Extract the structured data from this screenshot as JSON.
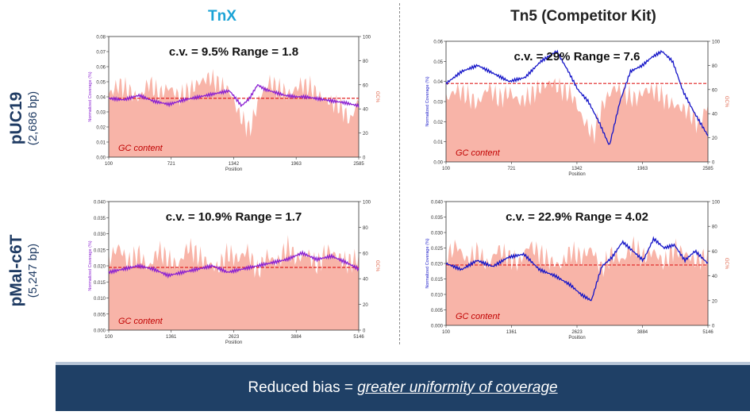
{
  "headers": {
    "left": "TnX",
    "right": "Tn5 (Competitor Kit)"
  },
  "row_labels": [
    {
      "main": "pUC19",
      "sub": "(2,686 bp)"
    },
    {
      "main": "pMal-c6T",
      "sub": "(5,247 bp)"
    }
  ],
  "banner": {
    "prefix": "Reduced bias = ",
    "emphasis": "greater uniformity of coverage"
  },
  "colors": {
    "gc_fill": "#f8b4a8",
    "tnx_line": "#8a1fd2",
    "tn5_line": "#1414c8",
    "ref_line": "#e02020",
    "gc_label": "#c00000"
  },
  "chart_data": [
    {
      "type": "area+line",
      "title": "c.v. = 9.5%  Range = 1.8",
      "xlabel": "Position",
      "ylabel": "Normalized Coverage (%)",
      "y2label": "GC%",
      "xticks": [
        100,
        721,
        1342,
        1963,
        2585
      ],
      "xlim": [
        100,
        2585
      ],
      "ylim": [
        0,
        0.08
      ],
      "yticks": [
        0,
        0.01,
        0.02,
        0.03,
        0.04,
        0.05,
        0.06,
        0.07,
        0.08
      ],
      "y2lim": [
        0,
        100
      ],
      "y2ticks": [
        0,
        20,
        40,
        60,
        80,
        100
      ],
      "annotation": "GC content",
      "reference_line": 0.039,
      "line_color": "#8a1fd2",
      "series": [
        {
          "name": "coverage",
          "x": [
            100,
            250,
            400,
            550,
            700,
            850,
            1000,
            1150,
            1300,
            1350,
            1420,
            1500,
            1580,
            1650,
            1750,
            1850,
            1963,
            2050,
            2150,
            2250,
            2350,
            2450,
            2585
          ],
          "y": [
            0.039,
            0.038,
            0.041,
            0.037,
            0.035,
            0.038,
            0.04,
            0.042,
            0.044,
            0.04,
            0.034,
            0.039,
            0.048,
            0.045,
            0.043,
            0.041,
            0.04,
            0.04,
            0.039,
            0.038,
            0.037,
            0.036,
            0.034
          ]
        },
        {
          "name": "gc",
          "x": [
            100,
            200,
            300,
            400,
            500,
            600,
            700,
            800,
            900,
            1000,
            1100,
            1200,
            1300,
            1400,
            1500,
            1600,
            1700,
            1800,
            1900,
            2000,
            2100,
            2200,
            2300,
            2400,
            2500,
            2585
          ],
          "y": [
            52,
            60,
            55,
            48,
            62,
            52,
            58,
            50,
            55,
            62,
            66,
            60,
            55,
            35,
            22,
            50,
            62,
            56,
            52,
            60,
            58,
            50,
            46,
            42,
            30,
            48
          ]
        }
      ]
    },
    {
      "type": "area+line",
      "title": "c.v. = 29%  Range = 7.6",
      "xlabel": "Position",
      "ylabel": "Normalized Coverage (%)",
      "y2label": "GC%",
      "xticks": [
        100,
        721,
        1342,
        1963,
        2585
      ],
      "xlim": [
        100,
        2585
      ],
      "ylim": [
        0,
        0.06
      ],
      "yticks": [
        0,
        0.01,
        0.02,
        0.03,
        0.04,
        0.05,
        0.06
      ],
      "y2lim": [
        0,
        100
      ],
      "y2ticks": [
        0,
        20,
        40,
        60,
        80,
        100
      ],
      "annotation": "GC content",
      "reference_line": 0.039,
      "line_color": "#1414c8",
      "series": [
        {
          "name": "coverage",
          "x": [
            100,
            250,
            400,
            550,
            700,
            850,
            1000,
            1150,
            1250,
            1350,
            1450,
            1550,
            1650,
            1750,
            1850,
            1963,
            2050,
            2150,
            2250,
            2350,
            2450,
            2585
          ],
          "y": [
            0.039,
            0.045,
            0.048,
            0.044,
            0.04,
            0.042,
            0.05,
            0.055,
            0.046,
            0.036,
            0.03,
            0.02,
            0.008,
            0.03,
            0.045,
            0.048,
            0.052,
            0.055,
            0.05,
            0.035,
            0.025,
            0.013
          ]
        },
        {
          "name": "gc",
          "x": [
            100,
            200,
            300,
            400,
            500,
            600,
            700,
            800,
            900,
            1000,
            1100,
            1200,
            1300,
            1400,
            1500,
            1600,
            1700,
            1800,
            1900,
            2000,
            2100,
            2200,
            2300,
            2400,
            2500,
            2585
          ],
          "y": [
            52,
            60,
            55,
            48,
            62,
            52,
            58,
            50,
            55,
            62,
            66,
            60,
            55,
            35,
            22,
            50,
            62,
            56,
            52,
            60,
            58,
            50,
            46,
            42,
            30,
            48
          ]
        }
      ]
    },
    {
      "type": "area+line",
      "title": "c.v. = 10.9%  Range = 1.7",
      "xlabel": "Position",
      "ylabel": "Normalized Coverage (%)",
      "y2label": "GC%",
      "xticks": [
        100,
        1361,
        2623,
        3884,
        5146
      ],
      "xlim": [
        100,
        5146
      ],
      "ylim": [
        0,
        0.04
      ],
      "yticks": [
        0,
        0.005,
        0.01,
        0.015,
        0.02,
        0.025,
        0.03,
        0.035,
        0.04
      ],
      "y2lim": [
        0,
        100
      ],
      "y2ticks": [
        0,
        20,
        40,
        60,
        80,
        100
      ],
      "annotation": "GC content",
      "reference_line": 0.0195,
      "line_color": "#8a1fd2",
      "series": [
        {
          "name": "coverage",
          "x": [
            100,
            400,
            700,
            1000,
            1300,
            1600,
            1900,
            2200,
            2500,
            2800,
            3100,
            3400,
            3700,
            4000,
            4300,
            4600,
            4900,
            5146
          ],
          "y": [
            0.018,
            0.019,
            0.02,
            0.019,
            0.017,
            0.018,
            0.019,
            0.02,
            0.018,
            0.019,
            0.02,
            0.021,
            0.022,
            0.024,
            0.022,
            0.023,
            0.021,
            0.019
          ]
        },
        {
          "name": "gc",
          "x": [
            100,
            300,
            500,
            700,
            900,
            1100,
            1300,
            1500,
            1700,
            1900,
            2100,
            2300,
            2500,
            2700,
            2900,
            3100,
            3300,
            3500,
            3700,
            3900,
            4100,
            4300,
            4500,
            4700,
            4900,
            5146
          ],
          "y": [
            55,
            65,
            52,
            60,
            48,
            62,
            55,
            50,
            65,
            58,
            52,
            48,
            60,
            55,
            62,
            45,
            58,
            52,
            65,
            55,
            60,
            50,
            62,
            58,
            52,
            56
          ]
        }
      ]
    },
    {
      "type": "area+line",
      "title": "c.v. = 22.9%  Range = 4.02",
      "xlabel": "Position",
      "ylabel": "Normalized Coverage (%)",
      "y2label": "GC%",
      "xticks": [
        100,
        1361,
        2623,
        3884,
        5146
      ],
      "xlim": [
        100,
        5146
      ],
      "ylim": [
        0,
        0.04
      ],
      "yticks": [
        0,
        0.005,
        0.01,
        0.015,
        0.02,
        0.025,
        0.03,
        0.035,
        0.04
      ],
      "y2lim": [
        0,
        100
      ],
      "y2ticks": [
        0,
        20,
        40,
        60,
        80,
        100
      ],
      "annotation": "GC content",
      "reference_line": 0.0195,
      "line_color": "#1414c8",
      "series": [
        {
          "name": "coverage",
          "x": [
            100,
            400,
            700,
            1000,
            1300,
            1600,
            1900,
            2200,
            2500,
            2700,
            2900,
            3100,
            3300,
            3500,
            3700,
            3900,
            4100,
            4300,
            4500,
            4700,
            4900,
            5146
          ],
          "y": [
            0.02,
            0.018,
            0.021,
            0.019,
            0.022,
            0.023,
            0.018,
            0.016,
            0.013,
            0.01,
            0.008,
            0.019,
            0.022,
            0.027,
            0.024,
            0.021,
            0.028,
            0.025,
            0.026,
            0.021,
            0.024,
            0.02
          ]
        },
        {
          "name": "gc",
          "x": [
            100,
            300,
            500,
            700,
            900,
            1100,
            1300,
            1500,
            1700,
            1900,
            2100,
            2300,
            2500,
            2700,
            2900,
            3100,
            3300,
            3500,
            3700,
            3900,
            4100,
            4300,
            4500,
            4700,
            4900,
            5146
          ],
          "y": [
            55,
            65,
            52,
            60,
            48,
            62,
            55,
            50,
            65,
            58,
            52,
            48,
            60,
            55,
            62,
            45,
            58,
            52,
            65,
            55,
            60,
            50,
            62,
            58,
            52,
            56
          ]
        }
      ]
    }
  ]
}
